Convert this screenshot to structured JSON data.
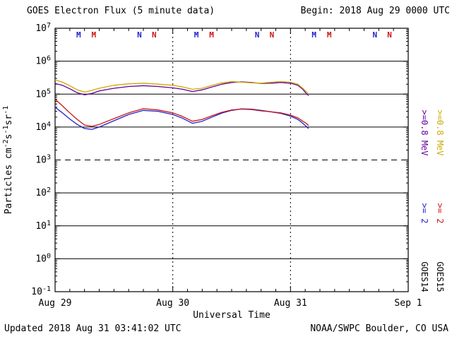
{
  "header": {
    "title": "GOES Electron Flux (5 minute data)",
    "begin": "Begin: 2018 Aug 29 0000 UTC"
  },
  "footer": {
    "updated": "Updated 2018 Aug 31 03:41:02 UTC",
    "source": "NOAA/SWPC Boulder, CO USA"
  },
  "chart_data": {
    "type": "line",
    "title": "GOES Electron Flux (5 minute data)",
    "x_axis": {
      "label": "Universal Time",
      "unit": "hours from 2018 Aug 29 0000 UTC",
      "range_hours": [
        0,
        72
      ],
      "day_ticks": [
        {
          "t": 0,
          "label": "Aug 29"
        },
        {
          "t": 24,
          "label": "Aug 30"
        },
        {
          "t": 48,
          "label": "Aug 31"
        },
        {
          "t": 72,
          "label": "Sep 1"
        }
      ],
      "minor_tick_hours": 3,
      "day_gridline_style": "dotted"
    },
    "y_axis": {
      "label": "Particles cm⁻²s⁻¹sr⁻¹",
      "scale": "log",
      "exp_range": [
        -1,
        7
      ],
      "tick_labels": [
        "10⁷",
        "10⁶",
        "10⁵",
        "10⁴",
        "10³",
        "10²",
        "10¹",
        "10⁰",
        "10⁻¹"
      ],
      "decade_gridlines": "solid",
      "threshold_line": {
        "value_exp": 3,
        "style": "dashed"
      }
    },
    "series": [
      {
        "id": "goes14_e08",
        "satellite": "GOES14",
        "energy": ">=0.8 MeV",
        "color": "#660099",
        "points": [
          [
            0,
            210000
          ],
          [
            1.5,
            185000
          ],
          [
            3,
            145000
          ],
          [
            4.5,
            110000
          ],
          [
            6,
            95000
          ],
          [
            7.5,
            105000
          ],
          [
            9,
            125000
          ],
          [
            12,
            150000
          ],
          [
            15,
            170000
          ],
          [
            18,
            180000
          ],
          [
            21,
            170000
          ],
          [
            24,
            155000
          ],
          [
            26,
            140000
          ],
          [
            28,
            120000
          ],
          [
            30,
            135000
          ],
          [
            32,
            165000
          ],
          [
            34,
            200000
          ],
          [
            36,
            225000
          ],
          [
            38,
            235000
          ],
          [
            40,
            225000
          ],
          [
            42,
            210000
          ],
          [
            44,
            215000
          ],
          [
            46,
            225000
          ],
          [
            48,
            215000
          ],
          [
            49.5,
            185000
          ],
          [
            50.5,
            140000
          ],
          [
            51.2,
            105000
          ],
          [
            51.7,
            90000
          ]
        ]
      },
      {
        "id": "goes15_e08",
        "satellite": "GOES15",
        "energy": ">=0.8 MeV",
        "color": "#CCAA00",
        "points": [
          [
            0,
            270000
          ],
          [
            1.5,
            230000
          ],
          [
            3,
            180000
          ],
          [
            4.5,
            135000
          ],
          [
            6,
            115000
          ],
          [
            7.5,
            130000
          ],
          [
            9,
            150000
          ],
          [
            12,
            185000
          ],
          [
            15,
            205000
          ],
          [
            18,
            215000
          ],
          [
            21,
            200000
          ],
          [
            24,
            185000
          ],
          [
            26,
            165000
          ],
          [
            28,
            140000
          ],
          [
            30,
            150000
          ],
          [
            32,
            185000
          ],
          [
            34,
            220000
          ],
          [
            36,
            240000
          ],
          [
            38,
            230000
          ],
          [
            40,
            220000
          ],
          [
            42,
            215000
          ],
          [
            44,
            230000
          ],
          [
            46,
            240000
          ],
          [
            48,
            230000
          ],
          [
            49.5,
            200000
          ],
          [
            50.5,
            150000
          ],
          [
            51.2,
            120000
          ],
          [
            51.7,
            100000
          ]
        ]
      },
      {
        "id": "goes14_e2",
        "satellite": "GOES14",
        "energy": ">= 2 MeV",
        "color": "#2222CC",
        "points": [
          [
            0,
            40000
          ],
          [
            1.5,
            27000
          ],
          [
            3,
            17500
          ],
          [
            4.5,
            12000
          ],
          [
            6,
            9000
          ],
          [
            7.5,
            8500
          ],
          [
            9,
            10000
          ],
          [
            12,
            15500
          ],
          [
            15,
            24000
          ],
          [
            18,
            32000
          ],
          [
            21,
            30000
          ],
          [
            24,
            24000
          ],
          [
            26,
            18500
          ],
          [
            28,
            13000
          ],
          [
            30,
            15000
          ],
          [
            32,
            20000
          ],
          [
            34,
            26500
          ],
          [
            36,
            32000
          ],
          [
            38,
            35500
          ],
          [
            40,
            35000
          ],
          [
            42,
            32000
          ],
          [
            44,
            29000
          ],
          [
            46,
            26000
          ],
          [
            48,
            21500
          ],
          [
            49.5,
            17000
          ],
          [
            50.5,
            13000
          ],
          [
            51.2,
            10500
          ],
          [
            51.7,
            9000
          ]
        ]
      },
      {
        "id": "goes15_e2",
        "satellite": "GOES15",
        "energy": ">= 2 MeV",
        "color": "#CC1414",
        "points": [
          [
            0,
            70000
          ],
          [
            1.5,
            44000
          ],
          [
            3,
            27000
          ],
          [
            4.5,
            17000
          ],
          [
            6,
            11500
          ],
          [
            7.5,
            10500
          ],
          [
            9,
            12000
          ],
          [
            12,
            18000
          ],
          [
            15,
            27000
          ],
          [
            18,
            36000
          ],
          [
            21,
            33000
          ],
          [
            24,
            27000
          ],
          [
            26,
            21000
          ],
          [
            28,
            15000
          ],
          [
            30,
            17000
          ],
          [
            32,
            22000
          ],
          [
            34,
            28000
          ],
          [
            36,
            33000
          ],
          [
            38,
            35000
          ],
          [
            40,
            34000
          ],
          [
            42,
            31000
          ],
          [
            44,
            29000
          ],
          [
            46,
            27000
          ],
          [
            48,
            23000
          ],
          [
            49.5,
            19000
          ],
          [
            50.5,
            15000
          ],
          [
            51.2,
            13000
          ],
          [
            51.7,
            11000
          ]
        ]
      }
    ],
    "top_markers": {
      "satellites": [
        {
          "name": "GOES14",
          "color": "#2222CC",
          "M": [
            4.8,
            28.8,
            52.8
          ],
          "N": [
            17.2,
            41.2,
            65.2
          ]
        },
        {
          "name": "GOES15",
          "color": "#CC1414",
          "M": [
            7.9,
            31.9,
            55.9
          ],
          "N": [
            20.2,
            44.2,
            68.2
          ]
        }
      ]
    },
    "right_legend": {
      "columns": [
        {
          "satellite": "GOES14",
          "entries": [
            {
              "text": ">=0.8 MeV",
              "color": "#660099"
            },
            {
              "text": ">= 2",
              "color": "#2222CC"
            }
          ]
        },
        {
          "satellite": "GOES15",
          "entries": [
            {
              "text": ">=0.8 MeV",
              "color": "#CCAA00"
            },
            {
              "text": ">= 2",
              "color": "#CC1414"
            }
          ]
        }
      ]
    }
  }
}
